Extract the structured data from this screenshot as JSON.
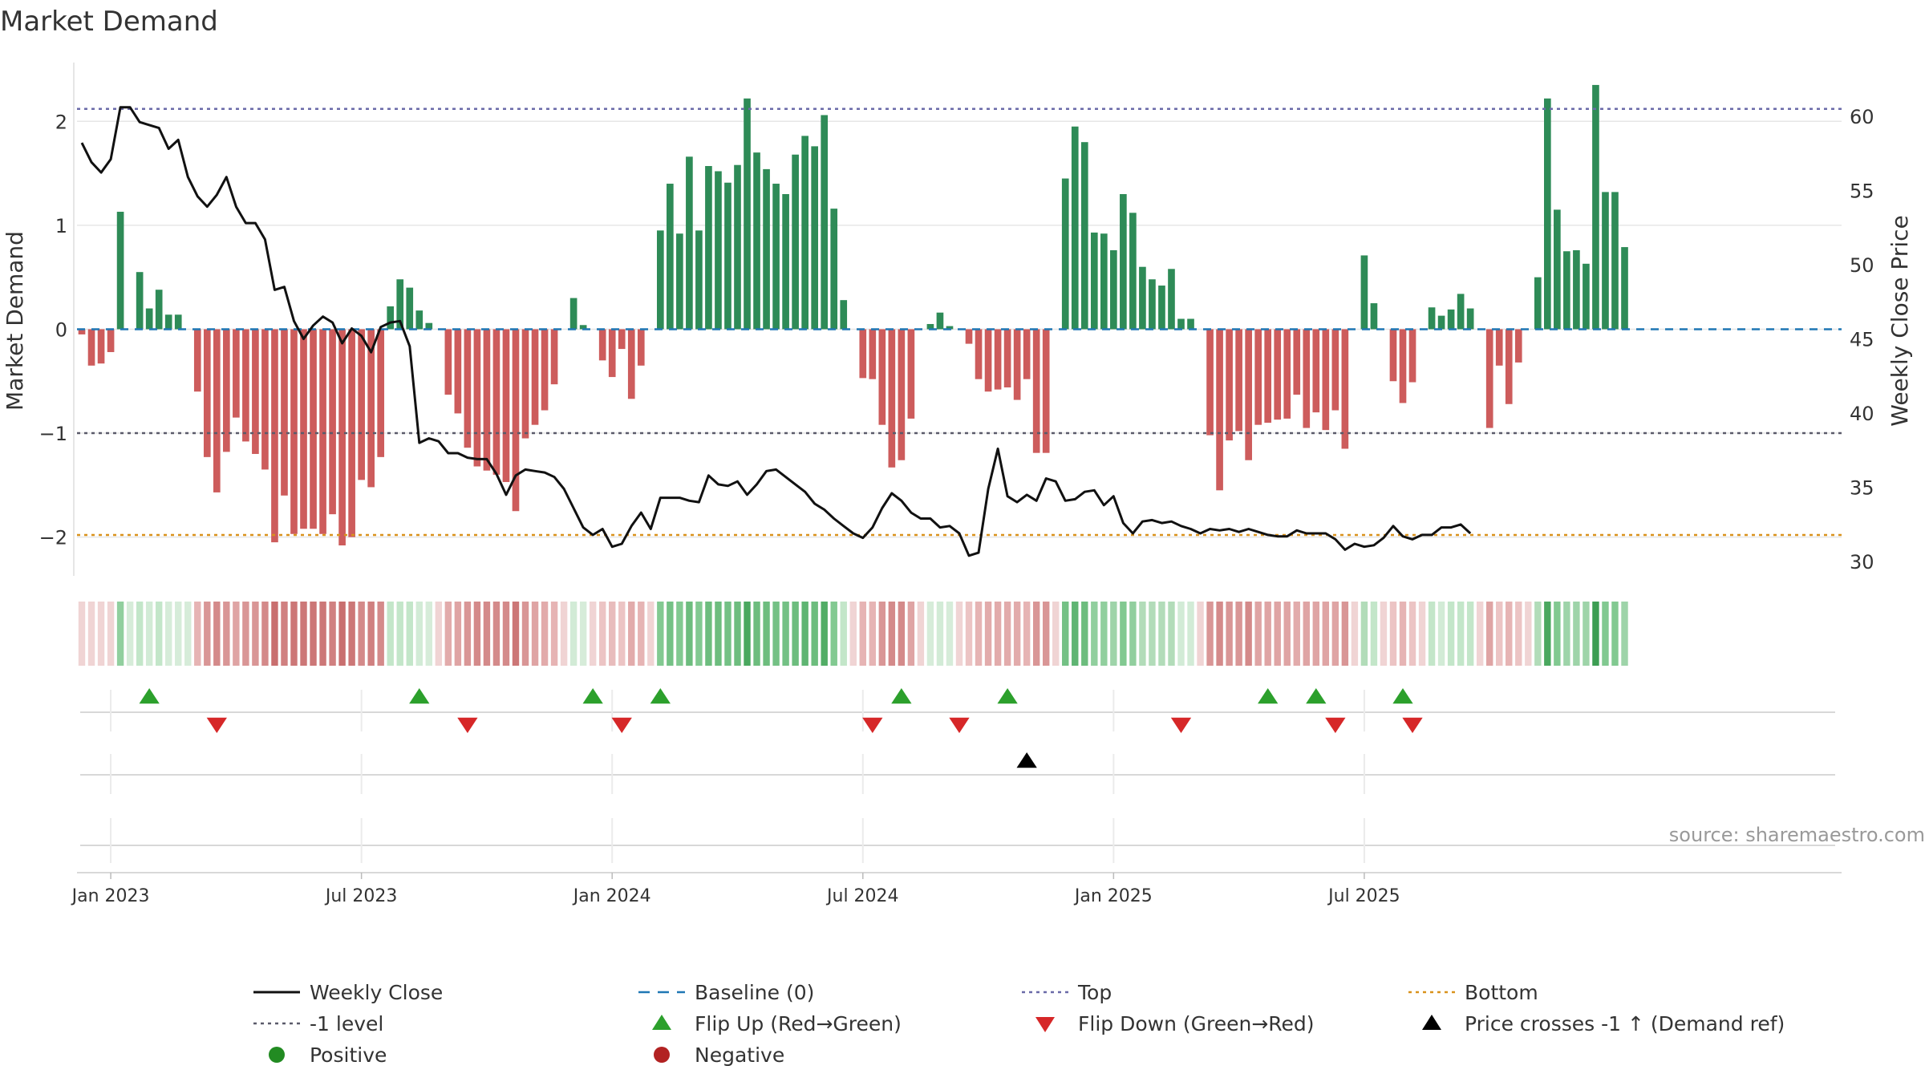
{
  "page": {
    "title": "Market Demand"
  },
  "colors": {
    "pos_bar": "#2e8b57",
    "neg_bar": "#cd5c5c",
    "close_line": "#111111",
    "baseline": "#1f77b4",
    "top_line": "#6a6aa8",
    "bottom_line": "#d9921c",
    "minus1_line": "#5a5a6a",
    "flip_up": "#2ca02c",
    "flip_down": "#d62728",
    "cross": "#000000",
    "positive_dot": "#228b22",
    "negative_dot": "#b22222",
    "grid": "#e6e6e6"
  },
  "chart_data": {
    "type": "bar",
    "title": "Market Demand",
    "ylabel": "Market Demand",
    "y2label": "Weekly Close Price",
    "ylim": [
      -2.35,
      2.55
    ],
    "y2lim": [
      29.2,
      63.5
    ],
    "yticks": [
      -2,
      -1,
      0,
      1,
      2
    ],
    "yticklabels": [
      "−2",
      "−1",
      "0",
      "1",
      "2"
    ],
    "y2ticks": [
      30,
      35,
      40,
      45,
      50,
      55,
      60
    ],
    "y2ticklabels": [
      "30",
      "35",
      "40",
      "45",
      "50",
      "55",
      "60"
    ],
    "reference_levels": {
      "top": 2.12,
      "bottom": -1.98,
      "minus_one": -1.0,
      "baseline": 0
    },
    "weeks": 183,
    "start_week_index": -3,
    "xticks": [
      {
        "week": 0,
        "label": "Jan 2023"
      },
      {
        "week": 26,
        "label": "Jul 2023"
      },
      {
        "week": 52,
        "label": "Jan 2024"
      },
      {
        "week": 78,
        "label": "Jul 2024"
      },
      {
        "week": 104,
        "label": "Jan 2025"
      },
      {
        "week": 130,
        "label": "Jul 2025"
      }
    ],
    "demand": [
      -0.05,
      -0.35,
      -0.33,
      -0.22,
      1.13,
      0,
      0.55,
      0.2,
      0.38,
      0.14,
      0.14,
      0,
      -0.6,
      -1.23,
      -1.57,
      -1.18,
      -0.85,
      -1.08,
      -1.2,
      -1.35,
      -2.05,
      -1.6,
      -1.97,
      -1.92,
      -1.92,
      -1.97,
      -1.78,
      -2.08,
      -2.0,
      -1.45,
      -1.52,
      -1.23,
      0.22,
      0.48,
      0.4,
      0.18,
      0.06,
      0,
      -0.63,
      -0.81,
      -1.14,
      -1.32,
      -1.36,
      -1.4,
      -1.47,
      -1.75,
      -1.05,
      -0.92,
      -0.78,
      -0.53,
      0,
      0.3,
      0.04,
      0,
      -0.3,
      -0.46,
      -0.19,
      -0.67,
      -0.35,
      0,
      0.95,
      1.4,
      0.92,
      1.66,
      0.95,
      1.57,
      1.52,
      1.41,
      1.58,
      2.22,
      1.7,
      1.54,
      1.4,
      1.3,
      1.68,
      1.86,
      1.76,
      2.06,
      1.16,
      0.28,
      0,
      -0.47,
      -0.48,
      -0.92,
      -1.33,
      -1.26,
      -0.86,
      0,
      0.05,
      0.16,
      0.03,
      0,
      -0.14,
      -0.48,
      -0.6,
      -0.58,
      -0.56,
      -0.68,
      -0.48,
      -1.19,
      -1.19,
      0,
      1.45,
      1.95,
      1.8,
      0.93,
      0.92,
      0.76,
      1.3,
      1.12,
      0.6,
      0.48,
      0.42,
      0.58,
      0.1,
      0.1,
      0,
      -1.02,
      -1.55,
      -1.07,
      -0.98,
      -1.26,
      -0.92,
      -0.9,
      -0.87,
      -0.86,
      -0.63,
      -0.95,
      -0.8,
      -0.97,
      -0.78,
      -1.15,
      0,
      0.71,
      0.25,
      0,
      -0.5,
      -0.71,
      -0.51,
      0,
      0.21,
      0.13,
      0.19,
      0.34,
      0.2,
      0,
      -0.95,
      -0.35,
      -0.72,
      -0.32,
      0,
      0.5,
      2.22,
      1.15,
      0.75,
      0.76,
      0.63,
      2.35,
      1.32,
      1.32,
      0.79
    ],
    "close": [
      58.2,
      56.9,
      56.2,
      57.1,
      60.6,
      60.6,
      59.6,
      59.4,
      59.2,
      57.8,
      58.4,
      55.9,
      54.6,
      53.9,
      54.7,
      55.9,
      53.9,
      52.8,
      52.8,
      51.7,
      48.3,
      48.5,
      46.2,
      45.0,
      45.9,
      46.5,
      46.1,
      44.7,
      45.7,
      45.2,
      44.1,
      45.8,
      46.1,
      46.2,
      44.5,
      38.0,
      38.3,
      38.1,
      37.3,
      37.3,
      37.0,
      36.9,
      36.9,
      35.9,
      34.5,
      35.8,
      36.2,
      36.1,
      36.0,
      35.7,
      34.9,
      33.6,
      32.3,
      31.8,
      32.2,
      31.0,
      31.2,
      32.4,
      33.3,
      32.2,
      34.3,
      34.3,
      34.3,
      34.1,
      34.0,
      35.8,
      35.2,
      35.1,
      35.4,
      34.5,
      35.2,
      36.1,
      36.2,
      35.7,
      35.2,
      34.7,
      33.9,
      33.5,
      32.9,
      32.4,
      31.9,
      31.6,
      32.3,
      33.6,
      34.6,
      34.1,
      33.3,
      32.9,
      32.9,
      32.3,
      32.4,
      31.9,
      30.4,
      30.6,
      34.9,
      37.6,
      34.4,
      34.0,
      34.5,
      34.1,
      35.6,
      35.4,
      34.1,
      34.2,
      34.7,
      34.8,
      33.8,
      34.4,
      32.6,
      31.9,
      32.7,
      32.8,
      32.6,
      32.7,
      32.4,
      32.2,
      31.9,
      32.2,
      32.1,
      32.2,
      32.0,
      32.2,
      32.0,
      31.8,
      31.7,
      31.7,
      32.1,
      31.9,
      31.9,
      31.9,
      31.5,
      30.8,
      31.2,
      31.0,
      31.1,
      31.6,
      32.4,
      31.7,
      31.5,
      31.8,
      31.8,
      32.3,
      32.3,
      32.5,
      31.9
    ],
    "strip": {
      "colors": [
        "#f0d4d4",
        "#f0d4d4",
        "#f0d4d4",
        "#f0d4d4",
        "#91cf9e",
        "#d6ecd9",
        "#c3e6c9",
        "#d2ebd6",
        "#c3e6c9",
        "#d6ecd9",
        "#d6ecd9",
        "#d6ecd9",
        "#e6b4b4",
        "#d99696",
        "#d48a8a",
        "#d99696",
        "#dfa4a4",
        "#d99696",
        "#d99696",
        "#d48a8a",
        "#c96f6f",
        "#d08080",
        "#cc7777",
        "#cc7777",
        "#cc7777",
        "#cc7777",
        "#d08080",
        "#c96f6f",
        "#cc7777",
        "#d48a8a",
        "#d08080",
        "#d48a8a",
        "#c3e6c9",
        "#c3e6c9",
        "#c3e6c9",
        "#d2ebd6",
        "#d6ecd9",
        "#f0d4d4",
        "#e2abab",
        "#dfa4a4",
        "#d99696",
        "#d48a8a",
        "#d48a8a",
        "#d48a8a",
        "#d48a8a",
        "#cc7777",
        "#d99696",
        "#dfa4a4",
        "#e2abab",
        "#e6b4b4",
        "#f0d4d4",
        "#d2ebd6",
        "#d6ecd9",
        "#f0d4d4",
        "#ecc4c4",
        "#e8bcbc",
        "#ecc4c4",
        "#e2abab",
        "#e6b4b4",
        "#f0d4d4",
        "#82c991",
        "#74c185",
        "#82c991",
        "#6dbd7e",
        "#82c991",
        "#6dbd7e",
        "#6dbd7e",
        "#74c185",
        "#6dbd7e",
        "#4aa85f",
        "#6dbd7e",
        "#6dbd7e",
        "#74c185",
        "#74c185",
        "#6dbd7e",
        "#5fb573",
        "#6dbd7e",
        "#52ad66",
        "#82c991",
        "#c3e6c9",
        "#f0d4d4",
        "#e6b4b4",
        "#e6b4b4",
        "#d99696",
        "#d48a8a",
        "#d48a8a",
        "#dfa4a4",
        "#f0d4d4",
        "#d6ecd9",
        "#d2ebd6",
        "#d6ecd9",
        "#f0d4d4",
        "#ecc4c4",
        "#e6b4b4",
        "#e2abab",
        "#e2abab",
        "#e2abab",
        "#e2abab",
        "#e6b4b4",
        "#d99696",
        "#d99696",
        "#f0d4d4",
        "#74c185",
        "#5fb573",
        "#6dbd7e",
        "#91cf9e",
        "#91cf9e",
        "#9ed4a9",
        "#82c991",
        "#91cf9e",
        "#b2dcb9",
        "#b2dcb9",
        "#b2dcb9",
        "#b2dcb9",
        "#d2ebd6",
        "#d2ebd6",
        "#f0d4d4",
        "#d99696",
        "#d48a8a",
        "#d99696",
        "#d99696",
        "#d48a8a",
        "#dfa4a4",
        "#dfa4a4",
        "#dfa4a4",
        "#dfa4a4",
        "#e2abab",
        "#dfa4a4",
        "#dfa4a4",
        "#dfa4a4",
        "#dfa4a4",
        "#d99696",
        "#f0d4d4",
        "#b2dcb9",
        "#c3e6c9",
        "#f0d4d4",
        "#ecc4c4",
        "#e6b4b4",
        "#ecc4c4",
        "#f0d4d4",
        "#c3e6c9",
        "#d2ebd6",
        "#c3e6c9",
        "#c3e6c9",
        "#c3e6c9",
        "#f0d4d4",
        "#dfa4a4",
        "#ecc4c4",
        "#e6b4b4",
        "#ecc4c4",
        "#f0d4d4",
        "#b2dcb9",
        "#4aa85f",
        "#82c991",
        "#9ed4a9",
        "#9ed4a9",
        "#9ed4a9",
        "#3d9e53",
        "#82c991",
        "#82c991",
        "#9ed4a9"
      ]
    },
    "events": {
      "flip_up_weeks": [
        4,
        32,
        50,
        57,
        82,
        93,
        120,
        125,
        134
      ],
      "flip_down_weeks": [
        11,
        37,
        53,
        79,
        88,
        111,
        127,
        135
      ],
      "price_cross_weeks": [
        95
      ]
    },
    "legend": {
      "position": "bottom",
      "entries": [
        {
          "label": "Weekly Close",
          "marker": "line"
        },
        {
          "label": "Baseline (0)",
          "marker": "dash"
        },
        {
          "label": "Top",
          "marker": "dot-line"
        },
        {
          "label": "Bottom",
          "marker": "dot-line-orange"
        },
        {
          "label": "-1 level",
          "marker": "dot-line-gray"
        },
        {
          "label": "Flip Up (Red→Green)",
          "marker": "triangle-up"
        },
        {
          "label": "Flip Down (Green→Red)",
          "marker": "triangle-down"
        },
        {
          "label": "Price crosses -1 ↑ (Demand ref)",
          "marker": "triangle-up-black"
        },
        {
          "label": "Positive",
          "marker": "circle-green"
        },
        {
          "label": "Negative",
          "marker": "circle-red"
        }
      ]
    },
    "source": "source: sharemaestro.com"
  }
}
